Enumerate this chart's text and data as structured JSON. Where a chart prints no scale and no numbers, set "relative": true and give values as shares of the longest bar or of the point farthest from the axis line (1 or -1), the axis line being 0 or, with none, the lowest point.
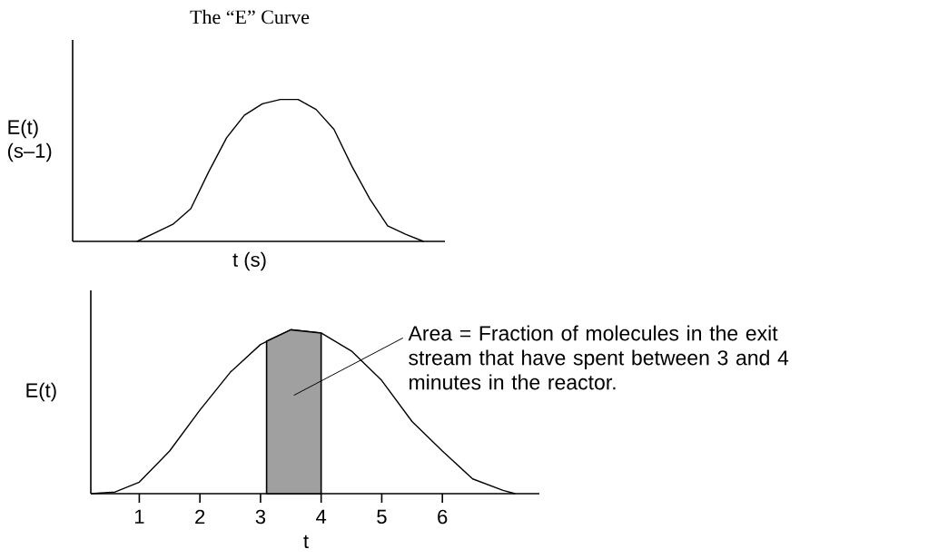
{
  "chart_data": [
    {
      "type": "line",
      "title": "The “E” Curve",
      "xlabel": "t (s)",
      "ylabel": "E(t) (s–1)",
      "relative": true,
      "tick_labels": false,
      "categories": [
        null,
        null,
        null,
        null,
        null,
        null,
        null,
        null,
        null,
        null,
        null,
        null,
        null,
        null,
        null,
        null,
        null
      ],
      "series": [
        {
          "color": "#000000",
          "values": [
            0,
            0.06,
            0.12,
            0.23,
            0.49,
            0.73,
            0.89,
            0.97,
            1.0,
            1.0,
            0.93,
            0.79,
            0.53,
            0.3,
            0.11,
            0.05,
            0
          ]
        }
      ]
    },
    {
      "type": "line",
      "xlabel": "t",
      "ylabel": "E(t)",
      "relative": true,
      "tick_labels": "x",
      "xlim": [
        0.2,
        7.6
      ],
      "xticks": [
        1,
        2,
        3,
        4,
        5,
        6
      ],
      "series": [
        {
          "color": "#000000",
          "x": [
            0.2,
            0.6,
            1.0,
            1.5,
            2.0,
            2.5,
            3.0,
            3.5,
            4.0,
            4.5,
            5.0,
            5.5,
            6.0,
            6.5,
            7.0,
            7.2
          ],
          "values": [
            0,
            0.01,
            0.07,
            0.26,
            0.51,
            0.74,
            0.91,
            1.0,
            0.98,
            0.87,
            0.69,
            0.44,
            0.26,
            0.09,
            0.02,
            0
          ]
        },
        {
          "type": "area",
          "color": "#a0a0a0",
          "x": [
            3.1,
            3.5,
            4.0
          ],
          "values": [
            0.93,
            1.0,
            0.98
          ]
        }
      ],
      "annotations": [
        "Area = Fraction of molecules in the exit stream that have spent between 3 and 4 minutes in the reactor."
      ]
    }
  ]
}
